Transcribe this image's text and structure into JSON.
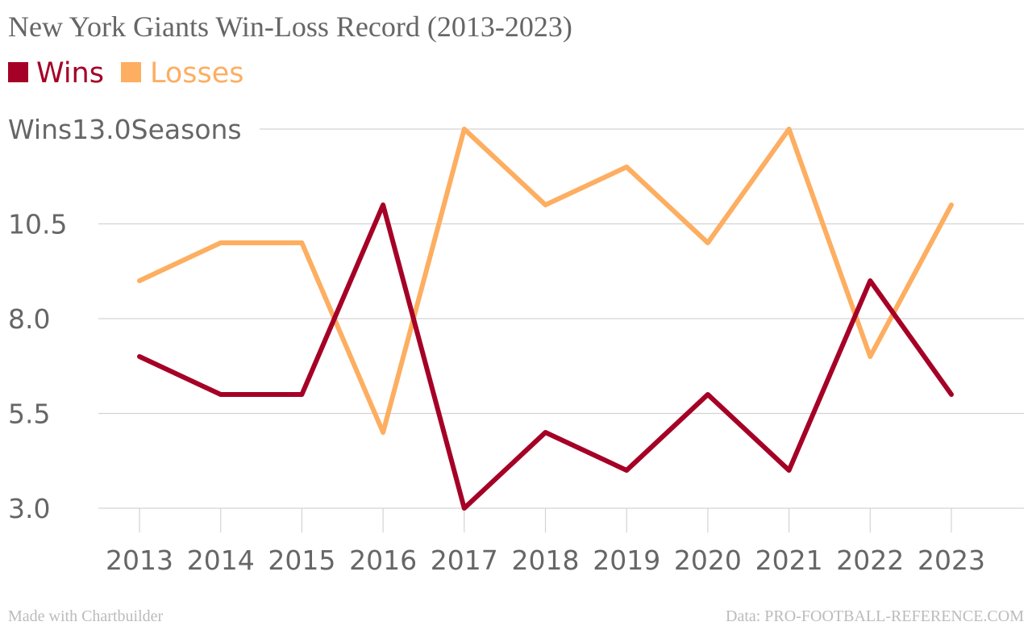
{
  "chart_data": {
    "type": "line",
    "title": "New York Giants Win-Loss Record (2013-2023)",
    "categories": [
      "2013",
      "2014",
      "2015",
      "2016",
      "2017",
      "2018",
      "2019",
      "2020",
      "2021",
      "2022",
      "2023"
    ],
    "series": [
      {
        "name": "Wins",
        "color": "#a50026",
        "values": [
          7,
          6,
          6,
          11,
          3,
          5,
          4,
          6,
          4,
          9,
          6
        ]
      },
      {
        "name": "Losses",
        "color": "#fdae61",
        "values": [
          9,
          10,
          10,
          5,
          13,
          11,
          12,
          10,
          13,
          7,
          11
        ]
      }
    ],
    "ylim": [
      3.0,
      13.0
    ],
    "yticks": [
      "3.0",
      "5.5",
      "8.0",
      "10.5",
      "13.0"
    ],
    "ytick_top_prefix": "Wins",
    "ytick_top_suffix": "Seasons",
    "grid": true,
    "legend_position": "top-left",
    "footer_left": "Made with Chartbuilder",
    "footer_right": "Data: PRO-FOOTBALL-REFERENCE.COM",
    "colors": {
      "wins": "#a50026",
      "losses": "#fdae61",
      "text": "#666666",
      "grid": "#d3d3d3",
      "footer": "#bbbbbb"
    }
  }
}
